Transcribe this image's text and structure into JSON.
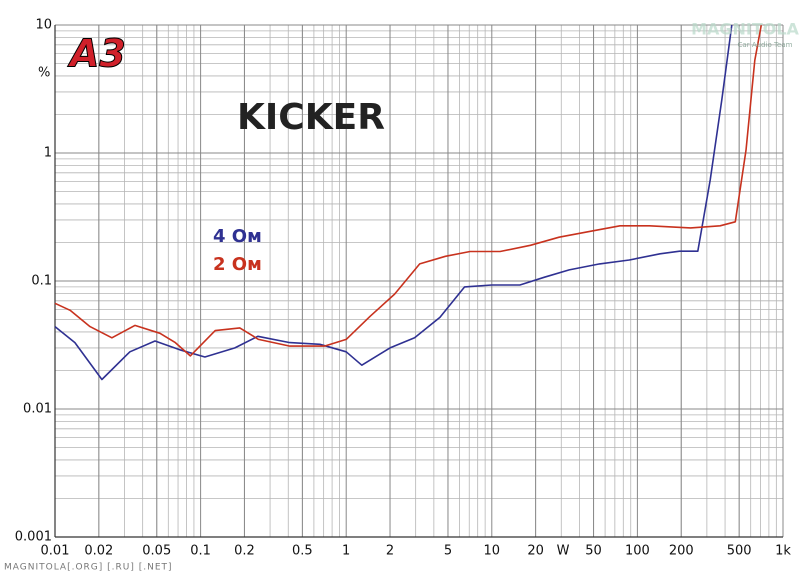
{
  "chart_data": {
    "type": "line",
    "title": "KICKER",
    "logo": "A3",
    "y_unit": "%",
    "x_unit": "W",
    "watermark": "MAGNITOLA[.ORG] [.RU] [.NET]",
    "watermark_top": "MAGNITOLA",
    "watermark_top_sub": "Car Audio Team",
    "xscale": "log",
    "yscale": "log",
    "grid": true,
    "minor_grid": true,
    "xlim": [
      0.01,
      1000
    ],
    "ylim": [
      0.001,
      10
    ],
    "xticks": [
      0.01,
      0.02,
      0.05,
      0.1,
      0.2,
      0.5,
      1,
      2,
      5,
      10,
      20,
      50,
      100,
      200,
      500,
      {
        "value": 1000,
        "label": "1k"
      }
    ],
    "yticks": [
      0.001,
      0.01,
      0.1,
      1,
      10
    ],
    "series": [
      {
        "name": "4 Ом",
        "color": "#2f3192",
        "x": [
          0.01,
          0.0137,
          0.021,
          0.0327,
          0.0486,
          0.072,
          0.107,
          0.172,
          0.247,
          0.41,
          0.66,
          1.0,
          1.28,
          2.0,
          2.95,
          4.4,
          6.5,
          10,
          15.6,
          23,
          34,
          55,
          88,
          143,
          195,
          260,
          316,
          380,
          445
        ],
        "values": [
          0.044,
          0.033,
          0.017,
          0.028,
          0.034,
          0.029,
          0.0255,
          0.03,
          0.037,
          0.033,
          0.032,
          0.028,
          0.022,
          0.03,
          0.036,
          0.052,
          0.09,
          0.093,
          0.093,
          0.107,
          0.122,
          0.136,
          0.146,
          0.163,
          0.171,
          0.171,
          0.615,
          2.6,
          10
        ]
      },
      {
        "name": "2 Ом",
        "color": "#c8321e",
        "x": [
          0.01,
          0.0127,
          0.0174,
          0.0246,
          0.0354,
          0.0526,
          0.067,
          0.085,
          0.126,
          0.186,
          0.25,
          0.41,
          0.71,
          1.0,
          1.46,
          2.15,
          3.2,
          4.8,
          7.1,
          11.4,
          18.4,
          29,
          48,
          76,
          121,
          232,
          370,
          470,
          557,
          640,
          710
        ],
        "values": [
          0.067,
          0.059,
          0.044,
          0.036,
          0.045,
          0.039,
          0.033,
          0.026,
          0.041,
          0.043,
          0.035,
          0.031,
          0.031,
          0.035,
          0.053,
          0.079,
          0.136,
          0.156,
          0.17,
          0.17,
          0.19,
          0.22,
          0.245,
          0.27,
          0.27,
          0.26,
          0.27,
          0.29,
          1.05,
          5.3,
          10
        ]
      }
    ]
  }
}
